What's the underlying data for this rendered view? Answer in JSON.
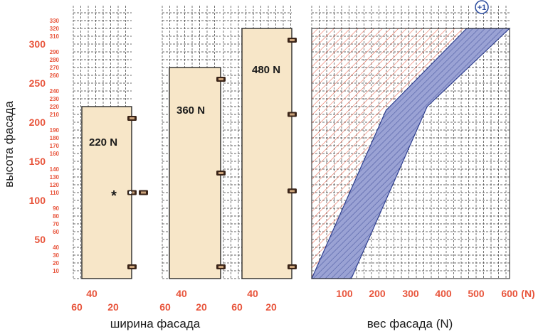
{
  "axes": {
    "y_title": "высота фасада",
    "width_title": "ширина фасада",
    "weight_title": "вес фасада (N)",
    "y_major": [
      50,
      100,
      150,
      200,
      250,
      300
    ],
    "y_minor": [
      10,
      20,
      30,
      40,
      60,
      70,
      80,
      90,
      110,
      120,
      130,
      140,
      160,
      170,
      180,
      190,
      210,
      220,
      230,
      240,
      260,
      270,
      280,
      290,
      310,
      320,
      330
    ],
    "width_ticks_top": [
      "40",
      "40",
      "40"
    ],
    "width_ticks_bottom": [
      "60",
      "20",
      "60",
      "20",
      "60",
      "20"
    ],
    "weight_ticks": [
      "100",
      "200",
      "300",
      "400",
      "500",
      "600"
    ],
    "weight_unit": "(N)"
  },
  "doors": [
    {
      "label": "220 N",
      "height": 220,
      "hinges": [
        15,
        110,
        205
      ],
      "note": "*"
    },
    {
      "label": "360 N",
      "height": 270,
      "hinges": [
        15,
        135,
        255
      ]
    },
    {
      "label": "480 N",
      "height": 320,
      "hinges": [
        15,
        112,
        210,
        305
      ]
    }
  ],
  "weight_panel": {
    "badge": "+1",
    "red_zone": [
      [
        0,
        0
      ],
      [
        220,
        215
      ],
      [
        480,
        320
      ],
      [
        0,
        320
      ]
    ],
    "blue_zone": [
      [
        0,
        0
      ],
      [
        120,
        0
      ],
      [
        350,
        220
      ],
      [
        600,
        320
      ],
      [
        470,
        320
      ],
      [
        225,
        215
      ]
    ]
  },
  "colors": {
    "accent": "#e8553c",
    "door_fill": "#f7e6c8",
    "blue_zone": "#8f96c8",
    "red_hatch": "#e8553c",
    "badge": "#2f4fa0"
  }
}
